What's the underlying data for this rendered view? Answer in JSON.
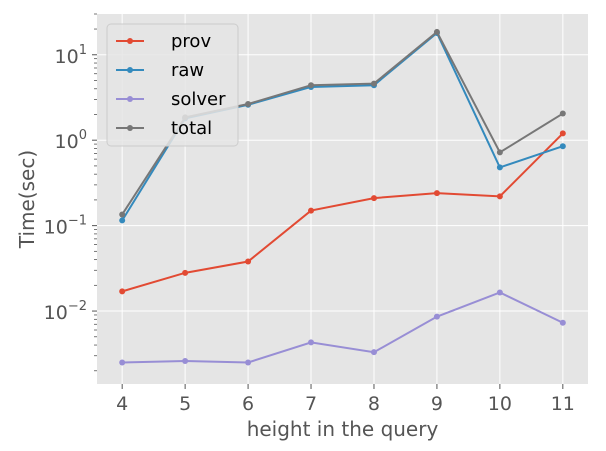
{
  "chart_data": {
    "type": "line",
    "xlabel": "height in the query",
    "ylabel": "Time(sec)",
    "x": [
      4,
      5,
      6,
      7,
      8,
      9,
      10,
      11
    ],
    "x_ticks": [
      "4",
      "5",
      "6",
      "7",
      "8",
      "9",
      "10",
      "11"
    ],
    "y_scale": "log",
    "ylim": [
      0.0014,
      30
    ],
    "y_ticks": [
      {
        "value": 0.01,
        "base": "10",
        "exp": "−2"
      },
      {
        "value": 0.1,
        "base": "10",
        "exp": "−1"
      },
      {
        "value": 1,
        "base": "10",
        "exp": "0"
      },
      {
        "value": 10,
        "base": "10",
        "exp": "1"
      }
    ],
    "grid": true,
    "legend_position": "top-left",
    "series": [
      {
        "name": "prov",
        "color": "#E24A33",
        "values": [
          0.017,
          0.028,
          0.038,
          0.15,
          0.21,
          0.24,
          0.22,
          1.2
        ]
      },
      {
        "name": "raw",
        "color": "#348ABD",
        "values": [
          0.115,
          1.8,
          2.6,
          4.2,
          4.4,
          18,
          0.48,
          0.85
        ]
      },
      {
        "name": "solver",
        "color": "#988ED5",
        "values": [
          0.0025,
          0.0026,
          0.0025,
          0.0043,
          0.0033,
          0.0086,
          0.0165,
          0.0073
        ]
      },
      {
        "name": "total",
        "color": "#777777",
        "values": [
          0.135,
          1.85,
          2.65,
          4.4,
          4.6,
          18.5,
          0.72,
          2.05
        ]
      }
    ]
  }
}
